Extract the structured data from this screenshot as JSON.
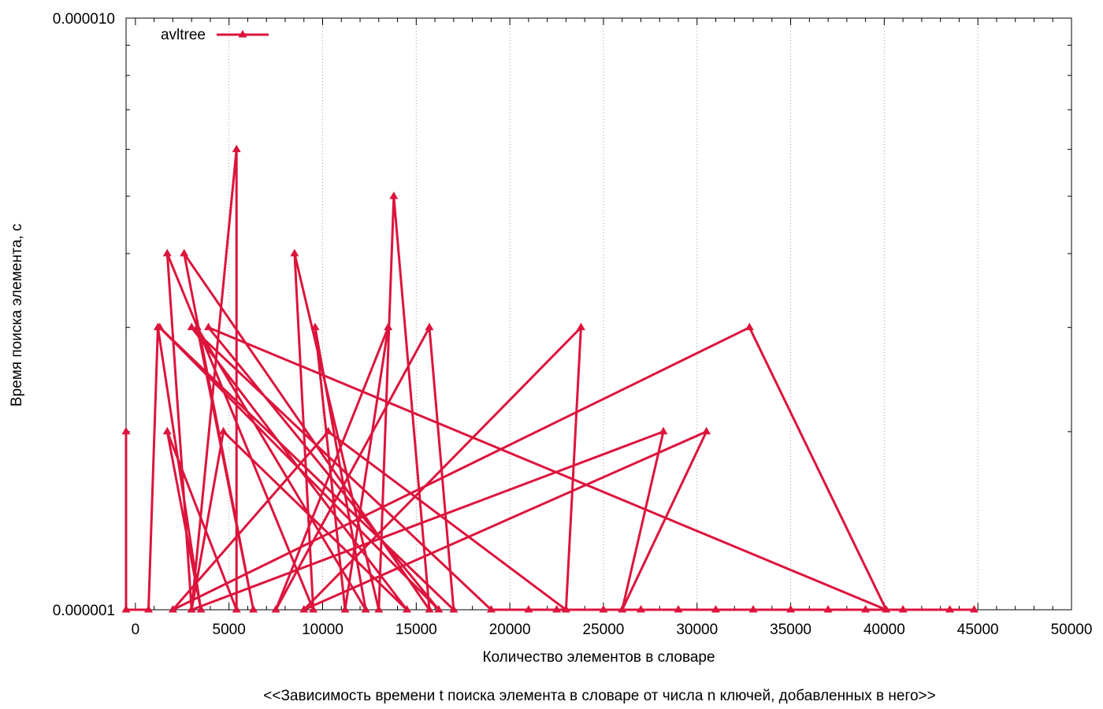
{
  "chart_data": {
    "type": "line",
    "title": "<<Зависимость времени t поиска элемента в словаре от числа n ключей, добавленных в него>>",
    "xlabel": "Количество элементов в словаре",
    "ylabel": "Время поиска элемента, с",
    "xlim": [
      -500,
      50000
    ],
    "ylim": [
      1e-06,
      1e-05
    ],
    "y_scale": "log",
    "x_ticks": [
      0,
      5000,
      10000,
      15000,
      20000,
      25000,
      30000,
      35000,
      40000,
      45000,
      50000
    ],
    "x_tick_labels": [
      "0",
      "5000",
      "10000",
      "15000",
      "20000",
      "25000",
      "30000",
      "35000",
      "40000",
      "45000",
      "50000"
    ],
    "y_tick_labels": [
      "0.000001",
      "0.000010"
    ],
    "y_tick_values": [
      1e-06,
      1e-05
    ],
    "grid": "vertical dotted",
    "legend_position": "top-left",
    "colors": {
      "series": "#dc143c",
      "grid": "#a0a0a0",
      "axis": "#000000"
    },
    "series": [
      {
        "name": "avltree",
        "marker": "triangle",
        "points": [
          [
            -500,
            2e-06
          ],
          [
            -500,
            1e-06
          ],
          [
            700,
            1e-06
          ],
          [
            1200,
            3e-06
          ],
          [
            3500,
            1e-06
          ],
          [
            1700,
            2e-06
          ],
          [
            5400,
            1e-06
          ],
          [
            5400,
            6e-06
          ],
          [
            3000,
            1e-06
          ],
          [
            1700,
            4e-06
          ],
          [
            9500,
            1e-06
          ],
          [
            8500,
            4e-06
          ],
          [
            13000,
            1e-06
          ],
          [
            13800,
            5e-06
          ],
          [
            15700,
            1e-06
          ],
          [
            2600,
            4e-06
          ],
          [
            6300,
            1e-06
          ],
          [
            3300,
            3e-06
          ],
          [
            12300,
            1e-06
          ],
          [
            9600,
            3e-06
          ],
          [
            11200,
            1e-06
          ],
          [
            13500,
            3e-06
          ],
          [
            7500,
            1e-06
          ],
          [
            15700,
            3e-06
          ],
          [
            17000,
            1e-06
          ],
          [
            1300,
            3e-06
          ],
          [
            16200,
            1e-06
          ],
          [
            3900,
            3e-06
          ],
          [
            40100,
            1e-06
          ],
          [
            32800,
            3e-06
          ],
          [
            2000,
            1e-06
          ],
          [
            10300,
            2e-06
          ],
          [
            23000,
            1e-06
          ],
          [
            23800,
            3e-06
          ],
          [
            9000,
            1e-06
          ],
          [
            30500,
            2e-06
          ],
          [
            26000,
            1e-06
          ],
          [
            28200,
            2e-06
          ],
          [
            3000,
            1e-06
          ],
          [
            4700,
            2e-06
          ],
          [
            14500,
            1e-06
          ],
          [
            3000,
            3e-06
          ],
          [
            19000,
            1e-06
          ],
          [
            21000,
            1e-06
          ],
          [
            22500,
            1e-06
          ],
          [
            25000,
            1e-06
          ],
          [
            27000,
            1e-06
          ],
          [
            29000,
            1e-06
          ],
          [
            31000,
            1e-06
          ],
          [
            33000,
            1e-06
          ],
          [
            35000,
            1e-06
          ],
          [
            37000,
            1e-06
          ],
          [
            39000,
            1e-06
          ],
          [
            41000,
            1e-06
          ],
          [
            43500,
            1e-06
          ],
          [
            44800,
            1e-06
          ]
        ]
      }
    ]
  }
}
